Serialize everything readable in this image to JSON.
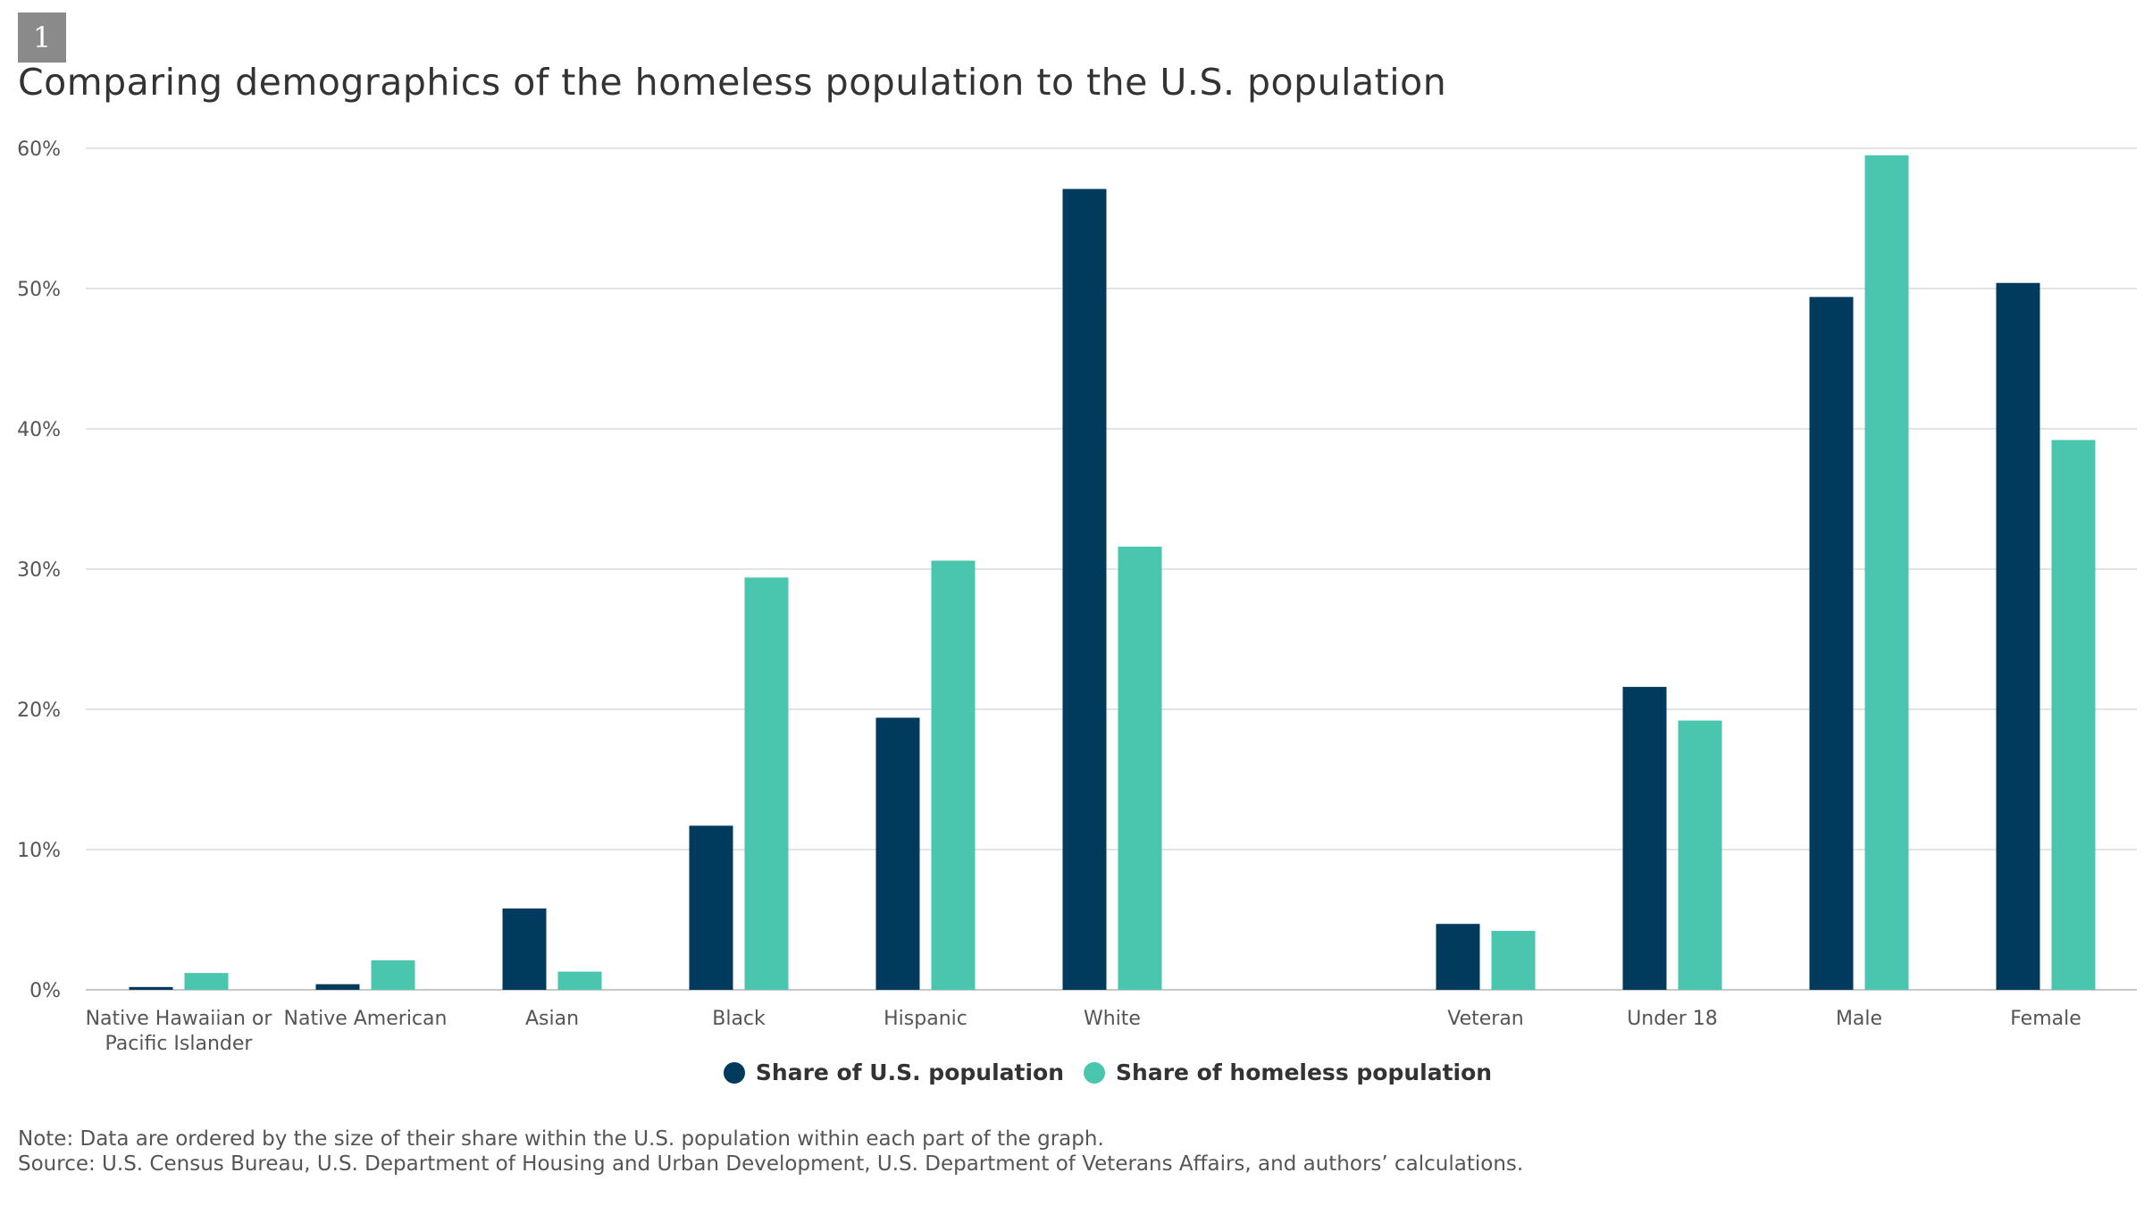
{
  "figure": {
    "number": "1",
    "title": "Comparing demographics of the homeless population to the U.S. population"
  },
  "chart_data": {
    "type": "bar",
    "title": "Comparing demographics of the homeless population to the U.S. population",
    "xlabel": "",
    "ylabel": "",
    "ylim": [
      0,
      60
    ],
    "yticks": [
      "0%",
      "10%",
      "20%",
      "30%",
      "40%",
      "50%",
      "60%"
    ],
    "grid": true,
    "legend_position": "bottom-center",
    "categories": [
      "Native Hawaiian or Pacific Islander",
      "Native American",
      "Asian",
      "Black",
      "Hispanic",
      "White",
      "",
      "Veteran",
      "Under 18",
      "Male",
      "Female"
    ],
    "category_label_lines": [
      [
        "Native Hawaiian or",
        "Pacific Islander"
      ],
      [
        "Native American"
      ],
      [
        "Asian"
      ],
      [
        "Black"
      ],
      [
        "Hispanic"
      ],
      [
        "White"
      ],
      [],
      [
        "Veteran"
      ],
      [
        "Under 18"
      ],
      [
        "Male"
      ],
      [
        "Female"
      ]
    ],
    "series": [
      {
        "name": "Share of U.S. population",
        "color": "#003a5d",
        "values": [
          0.2,
          0.4,
          5.8,
          11.7,
          19.4,
          57.1,
          null,
          4.7,
          21.6,
          49.4,
          50.4
        ]
      },
      {
        "name": "Share of homeless population",
        "color": "#4ac5ae",
        "values": [
          1.2,
          2.1,
          1.3,
          29.4,
          30.6,
          31.6,
          null,
          4.2,
          19.2,
          59.5,
          39.2
        ]
      }
    ]
  },
  "legend": {
    "items": [
      {
        "label": "Share of U.S. population",
        "color": "#003a5d"
      },
      {
        "label": "Share of homeless population",
        "color": "#4ac5ae"
      }
    ]
  },
  "notes": {
    "note": "Note: Data are ordered by the size of their share within the U.S. population within each part of the graph.",
    "source": "Source: U.S. Census Bureau, U.S. Department of Housing and Urban Development, U.S. Department of Veterans Affairs, and authors’ calculations."
  }
}
